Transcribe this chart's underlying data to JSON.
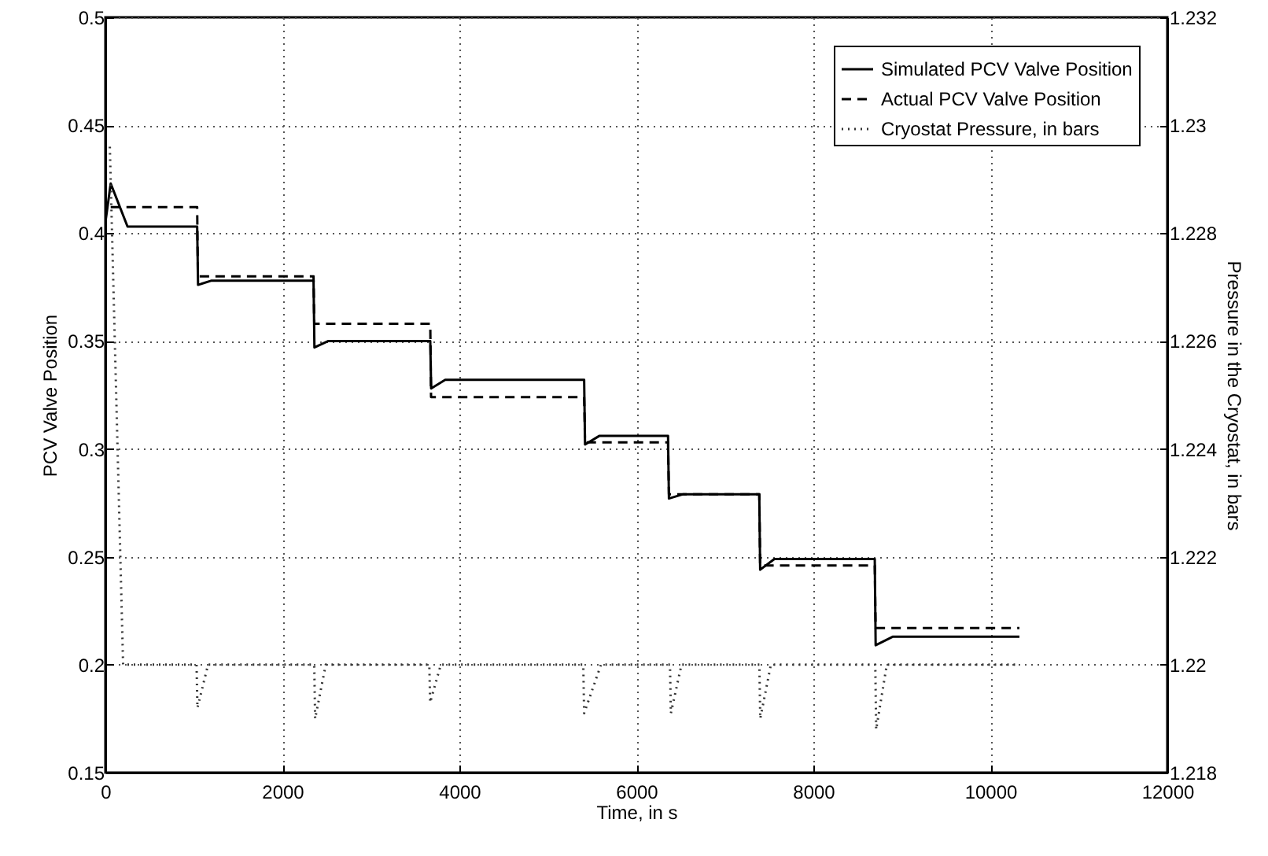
{
  "chart_data": {
    "type": "line",
    "xlabel": "Time, in s",
    "ylabel": "PCV Valve Position",
    "y2label": "Pressure in the Cryostat, in bars",
    "xlim": [
      0,
      12000
    ],
    "xticks": [
      0,
      2000,
      4000,
      6000,
      8000,
      10000,
      12000
    ],
    "ylim": [
      0.15,
      0.5
    ],
    "yticks": [
      0.15,
      0.2,
      0.25,
      0.3,
      0.35,
      0.4,
      0.45,
      0.5
    ],
    "y2lim": [
      1.218,
      1.232
    ],
    "y2ticks": [
      1.218,
      1.22,
      1.222,
      1.224,
      1.226,
      1.228,
      1.23,
      1.232
    ],
    "grid": true,
    "legend": "top right",
    "marker": "none",
    "series": [
      {
        "name": "Simulated PCV Valve Position",
        "color": "#000000",
        "line_style": "solid",
        "x": [
          0,
          60,
          250,
          1037,
          1047,
          1200,
          2352,
          2362,
          2520,
          3671,
          3681,
          3840,
          5410,
          5420,
          5580,
          6358,
          6368,
          6530,
          7389,
          7399,
          7560,
          8694,
          8704,
          8900,
          10329
        ],
        "values": [
          0.405,
          0.423,
          0.403,
          0.403,
          0.376,
          0.378,
          0.378,
          0.347,
          0.35,
          0.35,
          0.328,
          0.332,
          0.332,
          0.302,
          0.306,
          0.306,
          0.277,
          0.279,
          0.279,
          0.244,
          0.249,
          0.249,
          0.209,
          0.213,
          0.213
        ]
      },
      {
        "name": "Actual PCV Valve Position",
        "color": "#000000",
        "line_style": "dashed",
        "x": [
          60,
          1037,
          1045,
          2352,
          2360,
          3671,
          3680,
          5410,
          5420,
          6358,
          6368,
          7389,
          7399,
          8694,
          8704,
          10329
        ],
        "values": [
          0.412,
          0.412,
          0.38,
          0.38,
          0.358,
          0.358,
          0.324,
          0.324,
          0.303,
          0.303,
          0.279,
          0.279,
          0.246,
          0.246,
          0.217,
          0.217
        ]
      },
      {
        "name": "Cryostat Pressure, in bars",
        "color": "#333333",
        "line_style": "dotted",
        "axis": "y2",
        "x": [
          50,
          200,
          1030,
          1040,
          1160,
          2360,
          2370,
          2490,
          3660,
          3670,
          3790,
          5400,
          5410,
          5600,
          6380,
          6390,
          6510,
          7390,
          7400,
          7520,
          8700,
          8710,
          8830,
          10329
        ],
        "values": [
          1.2296,
          1.22,
          1.22,
          1.2192,
          1.22,
          1.22,
          1.219,
          1.22,
          1.22,
          1.2193,
          1.22,
          1.22,
          1.2191,
          1.22,
          1.22,
          1.2191,
          1.22,
          1.22,
          1.219,
          1.22,
          1.22,
          1.2188,
          1.22,
          1.22
        ]
      }
    ]
  }
}
